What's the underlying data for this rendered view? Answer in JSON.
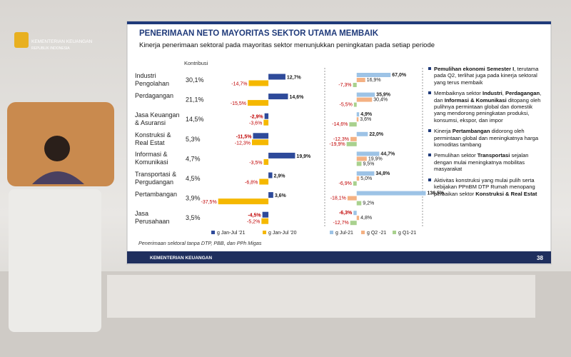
{
  "logo": {
    "line1": "KEMENTERIAN KEUANGAN",
    "line2": "REPUBLIK INDONESIA"
  },
  "slide": {
    "title": "PENERIMAAN NETO MAYORITAS SEKTOR UTAMA MEMBAIK",
    "subtitle": "Kinerja penerimaan sektoral pada mayoritas sektor menunjukkan peningkatan pada setiap periode",
    "contribution_header": "Kontribusi",
    "sectors": [
      "Industri Pengolahan",
      "Perdagangan",
      "Jasa Keuangan & Asuransi",
      "Konstruksi & Real Estat",
      "Informasi & Komunikasi",
      "Transportasi & Pergudangan",
      "Pertambangan",
      "Jasa Perusahaan"
    ],
    "contributions": [
      "30,1%",
      "21,1%",
      "14,5%",
      "5,3%",
      "4,7%",
      "4,5%",
      "3,9%",
      "3,5%"
    ],
    "footnote": "Penerimaan sektoral tanpa DTP, PBB, dan PPh Migas",
    "footer": "KEMENTERIAN KEUANGAN",
    "page_number": "38",
    "bullets": [
      [
        {
          "text": "Pemulihan ekonomi Semester I",
          "bold": true
        },
        {
          "text": ", terutama pada Q2, terlihat juga pada kinerja sektoral yang terus membaik",
          "bold": false
        }
      ],
      [
        {
          "text": "Membaiknya sektor ",
          "bold": false
        },
        {
          "text": "Industri",
          "bold": true
        },
        {
          "text": ", ",
          "bold": false
        },
        {
          "text": "Perdagangan",
          "bold": true
        },
        {
          "text": ", dan ",
          "bold": false
        },
        {
          "text": "Informasi & Komunikasi",
          "bold": true
        },
        {
          "text": " ditopang oleh pulihnya permintaan global dan domestik yang mendorong peningkatan produksi, konsumsi, ekspor, dan impor",
          "bold": false
        }
      ],
      [
        {
          "text": "Kinerja ",
          "bold": false
        },
        {
          "text": "Pertambangan",
          "bold": true
        },
        {
          "text": " didorong oleh permintaan global dan meningkatnya harga komoditas tambang",
          "bold": false
        }
      ],
      [
        {
          "text": "Pemulihan sektor ",
          "bold": false
        },
        {
          "text": "Transportasi",
          "bold": true
        },
        {
          "text": " sejalan dengan mulai meningkatnya mobilitas masyarakat",
          "bold": false
        }
      ],
      [
        {
          "text": "Aktivitas konstruksi yang mulai pulih serta kebijakan PPnBM DTP Rumah menopang perbaikan sektor ",
          "bold": false
        },
        {
          "text": "Konstruksi & Real Estat",
          "bold": true
        }
      ]
    ]
  },
  "chart_data": [
    {
      "type": "hbar",
      "xlim": [
        -40,
        25
      ],
      "series": [
        {
          "name": "g Jan-Jul '21",
          "color": "#2e4a9a",
          "values": [
            12.7,
            14.6,
            -2.9,
            -11.5,
            19.9,
            2.9,
            3.6,
            -4.5
          ],
          "value_labels": [
            "12,7%",
            "14,6%",
            "-2,9%",
            "-11,5%",
            "19,9%",
            "2,9%",
            "3,6%",
            "-4,5%"
          ]
        },
        {
          "name": "g Jan-Jul '20",
          "color": "#f5b800",
          "values": [
            -14.7,
            -15.5,
            -3.6,
            -12.3,
            -3.5,
            -6.8,
            -37.5,
            -5.2
          ],
          "value_labels": [
            "-14,7%",
            "-15,5%",
            "-3,6%",
            "-12,3%",
            "-3,5%",
            "-6,8%",
            "-37,5%",
            "-5,2%"
          ]
        }
      ]
    },
    {
      "type": "hbar",
      "xlim": [
        -25,
        140
      ],
      "series": [
        {
          "name": "g Jul-21",
          "color": "#9dc3e6",
          "values": [
            67.0,
            35.9,
            4.9,
            22.0,
            44.7,
            34.8,
            136.5,
            -6.3
          ],
          "value_labels": [
            "67,0%",
            "35,9%",
            "4,9%",
            "22,0%",
            "44,7%",
            "34,8%",
            "136,5%",
            "-6,3%"
          ]
        },
        {
          "name": "g Q2 -21",
          "color": "#f4b183",
          "values": [
            16.9,
            30.4,
            3.6,
            -12.3,
            19.9,
            5.0,
            -18.1,
            4.8
          ],
          "value_labels": [
            "16,9%",
            "30,4%",
            "3,6%",
            "-12,3%",
            "19,9%",
            "5,0%",
            "-18,1%",
            "4,8%"
          ]
        },
        {
          "name": "g Q1-21",
          "color": "#a9d18e",
          "values": [
            -7.3,
            -5.5,
            -14.6,
            -19.9,
            9.5,
            -6.9,
            9.2,
            -12.7
          ],
          "value_labels": [
            "-7,3%",
            "-5,5%",
            "-14,6%",
            "-19,9%",
            "9,5%",
            "-6,9%",
            "9,2%",
            "-12,7%"
          ]
        }
      ]
    }
  ]
}
